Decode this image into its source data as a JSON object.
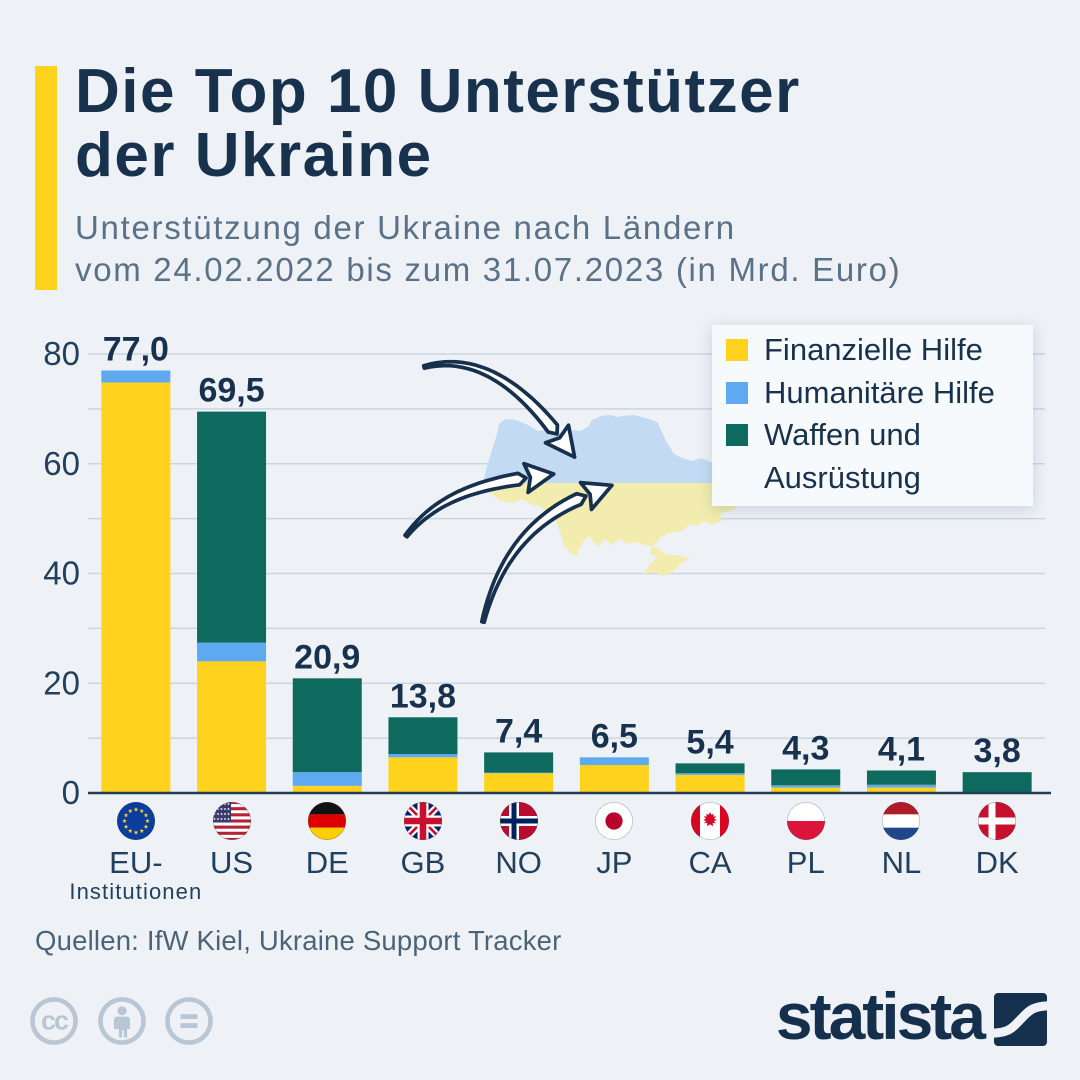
{
  "page": {
    "background": "#eef2f7",
    "accent_color": "#ffd21d",
    "text_navy": "#18324e"
  },
  "header": {
    "title": "Die Top 10 Unterstützer\nder Ukraine",
    "subtitle": "Unterstützung der Ukraine nach Ländern\nvom 24.02.2022 bis zum 31.07.2023 (in Mrd. Euro)"
  },
  "legend": {
    "items": [
      {
        "label": "Finanzielle Hilfe",
        "color": "#ffd21d"
      },
      {
        "label": "Humanitäre Hilfe",
        "color": "#5fa9f1"
      },
      {
        "label": "Waffen und Ausrüstung",
        "color": "#0e6a5e"
      }
    ]
  },
  "chart_data": {
    "type": "bar",
    "subtype": "stacked",
    "title": "Die Top 10 Unterstützer der Ukraine",
    "unit": "Mrd. Euro",
    "categories": [
      "EU-Institutionen",
      "US",
      "DE",
      "GB",
      "NO",
      "JP",
      "CA",
      "PL",
      "NL",
      "DK"
    ],
    "series": [
      {
        "name": "Finanzielle Hilfe",
        "color": "#ffd21d",
        "values": [
          74.8,
          24.0,
          1.3,
          6.5,
          3.6,
          5.1,
          3.3,
          1.0,
          1.0,
          0.0
        ]
      },
      {
        "name": "Humanitäre Hilfe",
        "color": "#5fa9f1",
        "values": [
          2.2,
          3.4,
          2.5,
          0.6,
          0.1,
          1.4,
          0.3,
          0.4,
          0.5,
          0.1
        ]
      },
      {
        "name": "Waffen und Ausrüstung",
        "color": "#0e6a5e",
        "values": [
          0.0,
          42.1,
          17.1,
          6.7,
          3.7,
          0.0,
          1.8,
          2.9,
          2.6,
          3.7
        ]
      }
    ],
    "totals": [
      77.0,
      69.5,
      20.9,
      13.8,
      7.4,
      6.5,
      5.4,
      4.3,
      4.1,
      3.8
    ],
    "total_labels": [
      "77,0",
      "69,5",
      "20,9",
      "13,8",
      "7,4",
      "6,5",
      "5,4",
      "4,3",
      "4,1",
      "3,8"
    ],
    "y_ticks": [
      0,
      20,
      40,
      60,
      80
    ],
    "ylim": [
      0,
      80
    ],
    "gridline_step": 10,
    "legend_position": "top-right",
    "grid": true
  },
  "countries": [
    {
      "code": "EU-",
      "sub": "Institutionen",
      "flag": "eu"
    },
    {
      "code": "US",
      "sub": "",
      "flag": "us"
    },
    {
      "code": "DE",
      "sub": "",
      "flag": "de"
    },
    {
      "code": "GB",
      "sub": "",
      "flag": "gb"
    },
    {
      "code": "NO",
      "sub": "",
      "flag": "no"
    },
    {
      "code": "JP",
      "sub": "",
      "flag": "jp"
    },
    {
      "code": "CA",
      "sub": "",
      "flag": "ca"
    },
    {
      "code": "PL",
      "sub": "",
      "flag": "pl"
    },
    {
      "code": "NL",
      "sub": "",
      "flag": "nl"
    },
    {
      "code": "DK",
      "sub": "",
      "flag": "dk"
    }
  ],
  "source": {
    "label": "Quellen: IfW Kiel, Ukraine Support Tracker"
  },
  "footer": {
    "license_icons": [
      "cc-icon",
      "attribution-icon",
      "no-derivatives-icon"
    ],
    "brand": "statista"
  }
}
